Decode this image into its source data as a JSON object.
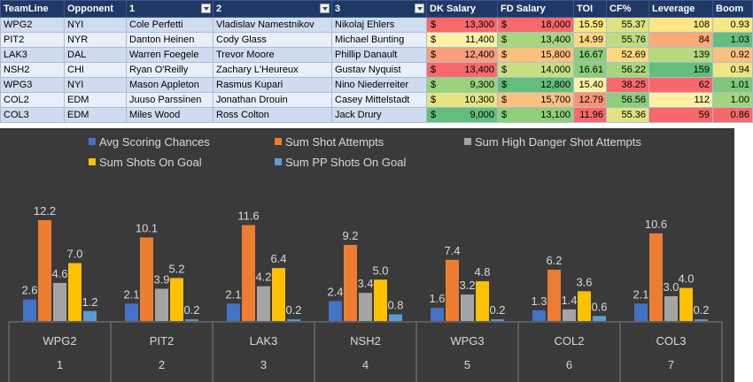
{
  "table": {
    "headers": [
      "TeamLine",
      "Opponent",
      "1",
      "2",
      "3",
      "DK Salary",
      "FD Salary",
      "TOI",
      "CF%",
      "Leverage",
      "Boom"
    ],
    "rows": [
      {
        "teamline": "WPG2",
        "opponent": "NYI",
        "p1": "Cole Perfetti",
        "p2": "Vladislav Namestnikov",
        "p3": "Nikolaj Ehlers",
        "dk_cur": "$",
        "dk": "13,300",
        "fd_cur": "$",
        "fd": "18,000",
        "toi": "15.59",
        "cf": "55.37",
        "leverage": "108",
        "boom": "0.93"
      },
      {
        "teamline": "PIT2",
        "opponent": "NYR",
        "p1": "Danton Heinen",
        "p2": "Cody Glass",
        "p3": "Michael Bunting",
        "dk_cur": "$",
        "dk": "11,400",
        "fd_cur": "$",
        "fd": "13,400",
        "toi": "14.99",
        "cf": "55.76",
        "leverage": "84",
        "boom": "1.03"
      },
      {
        "teamline": "LAK3",
        "opponent": "DAL",
        "p1": "Warren Foegele",
        "p2": "Trevor Moore",
        "p3": "Phillip Danault",
        "dk_cur": "$",
        "dk": "12,400",
        "fd_cur": "$",
        "fd": "15,800",
        "toi": "16.67",
        "cf": "52.69",
        "leverage": "139",
        "boom": "0.92"
      },
      {
        "teamline": "NSH2",
        "opponent": "CHI",
        "p1": "Ryan O'Reilly",
        "p2": "Zachary L'Heureux",
        "p3": "Gustav Nyquist",
        "dk_cur": "$",
        "dk": "13,400",
        "fd_cur": "$",
        "fd": "14,000",
        "toi": "16.61",
        "cf": "56.22",
        "leverage": "159",
        "boom": "0.94"
      },
      {
        "teamline": "WPG3",
        "opponent": "NYI",
        "p1": "Mason Appleton",
        "p2": "Rasmus Kupari",
        "p3": "Nino Niederreiter",
        "dk_cur": "$",
        "dk": "9,300",
        "fd_cur": "$",
        "fd": "12,800",
        "toi": "15.40",
        "cf": "38.25",
        "leverage": "62",
        "boom": "1.01"
      },
      {
        "teamline": "COL2",
        "opponent": "EDM",
        "p1": "Juuso Parssinen",
        "p2": "Jonathan Drouin",
        "p3": "Casey Mittelstadt",
        "dk_cur": "$",
        "dk": "10,300",
        "fd_cur": "$",
        "fd": "15,700",
        "toi": "12.79",
        "cf": "56.56",
        "leverage": "112",
        "boom": "1.00"
      },
      {
        "teamline": "COL3",
        "opponent": "EDM",
        "p1": "Miles Wood",
        "p2": "Ross Colton",
        "p3": "Jack Drury",
        "dk_cur": "$",
        "dk": "9,000",
        "fd_cur": "$",
        "fd": "13,100",
        "toi": "11.96",
        "cf": "55.36",
        "leverage": "59",
        "boom": "0.86"
      }
    ],
    "cell_colors": {
      "dk": [
        "#f8696b",
        "#fcf1a4",
        "#fc9e7d",
        "#f8696b",
        "#9bd37a",
        "#e4e483",
        "#63be7b"
      ],
      "fd": [
        "#f8696b",
        "#a8d67c",
        "#fcc17f",
        "#c6df80",
        "#63be7b",
        "#fcc17f",
        "#90cf7a"
      ],
      "toi": [
        "#fde783",
        "#fed880",
        "#8ccc7a",
        "#8ecd7a",
        "#fcf1a4",
        "#f99574",
        "#f8696b"
      ],
      "cf": [
        "#dfe283",
        "#bfdc80",
        "#fed880",
        "#a7d67c",
        "#f8696b",
        "#8fcd7a",
        "#e1e383"
      ],
      "leverage": [
        "#fde683",
        "#fcaa78",
        "#b6da7e",
        "#63be7b",
        "#f8696b",
        "#fff0a3",
        "#f8696b"
      ],
      "boom": [
        "#f6e883",
        "#63be7b",
        "#fcc17f",
        "#efe683",
        "#7ec77b",
        "#a2d57c",
        "#f8696b"
      ]
    }
  },
  "chart_data": {
    "type": "bar",
    "categories": [
      "WPG2",
      "PIT2",
      "LAK3",
      "NSH2",
      "WPG3",
      "COL2",
      "COL3"
    ],
    "category_numbers": [
      "1",
      "2",
      "3",
      "4",
      "5",
      "6",
      "7"
    ],
    "series": [
      {
        "name": "Avg Scoring Chances",
        "color": "#4472c4",
        "values": [
          2.6,
          2.1,
          2.1,
          2.4,
          1.6,
          1.3,
          2.1
        ],
        "labels": [
          "2.6",
          "2.1",
          "2.1",
          "2.4",
          "1.6",
          "1.3",
          "2.1"
        ]
      },
      {
        "name": "Sum Shot Attempts",
        "color": "#ed7d31",
        "values": [
          12.2,
          10.1,
          11.6,
          9.2,
          7.4,
          6.2,
          10.6
        ],
        "labels": [
          "12.2",
          "10.1",
          "11.6",
          "9.2",
          "7.4",
          "6.2",
          "10.6"
        ]
      },
      {
        "name": "Sum High Danger Shot Attempts",
        "color": "#a5a5a5",
        "values": [
          4.6,
          3.9,
          4.2,
          3.4,
          3.2,
          1.4,
          3.0
        ],
        "labels": [
          "4.6",
          "3.9",
          "4.2",
          "3.4",
          "3.2",
          "1.4",
          "3.0"
        ]
      },
      {
        "name": "Sum Shots On Goal",
        "color": "#ffc000",
        "values": [
          7.0,
          5.2,
          6.4,
          5.0,
          4.8,
          3.6,
          4.0
        ],
        "labels": [
          "7.0",
          "5.2",
          "6.4",
          "5.0",
          "4.8",
          "3.6",
          "4.0"
        ]
      },
      {
        "name": "Sum PP Shots On Goal",
        "color": "#5b9bd5",
        "values": [
          1.2,
          0.2,
          0.2,
          0.8,
          0.2,
          0.6,
          0.2
        ],
        "labels": [
          "1.2",
          "0.2",
          "0.2",
          "0.8",
          "0.2",
          "0.6",
          "0.2"
        ]
      }
    ],
    "legend_position": "top",
    "gridlines": false,
    "background": "#3a3a3a"
  }
}
